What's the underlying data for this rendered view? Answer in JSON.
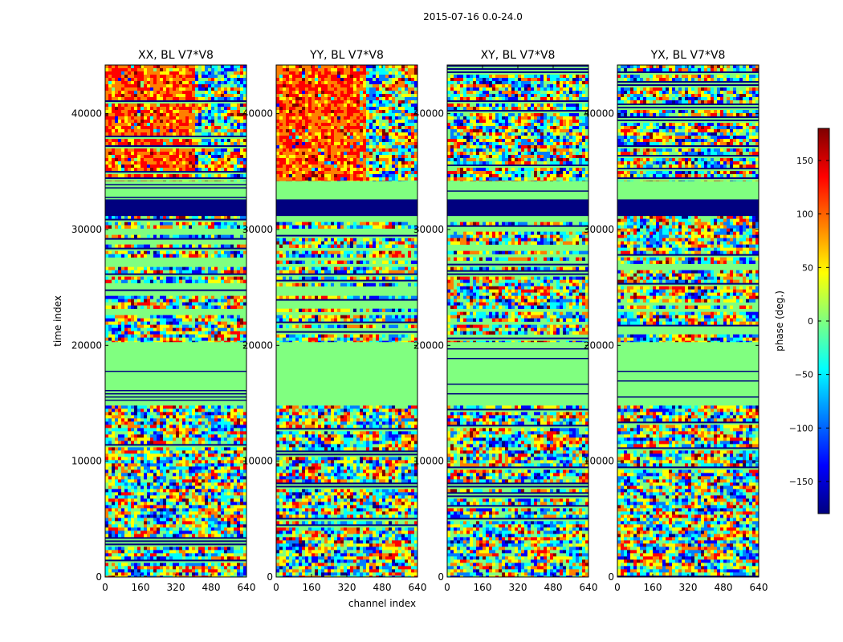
{
  "chart_data": {
    "type": "heatmap",
    "suptitle": "2015-07-16 0.0-24.0",
    "xlabel": "channel index",
    "ylabel": "time index",
    "xlim": [
      0,
      640
    ],
    "ylim": [
      0,
      44200
    ],
    "xticks": [
      0,
      160,
      320,
      480,
      640
    ],
    "yticks": [
      0,
      10000,
      20000,
      30000,
      40000
    ],
    "panels": [
      {
        "title": "XX, BL V7*V8",
        "band_dir": 1
      },
      {
        "title": "YY, BL V7*V8",
        "band_dir": -1
      },
      {
        "title": "XY, BL V7*V8",
        "band_dir": 1
      },
      {
        "title": "YX, BL V7*V8",
        "band_dir": -1
      }
    ],
    "colorbar": {
      "label": "phase (deg.)",
      "vmin": -180,
      "vmax": 180,
      "ticks": [
        150,
        100,
        50,
        0,
        -50,
        -100,
        -150
      ],
      "tick_labels": [
        "150",
        "100",
        "50",
        "0",
        "−50",
        "−100",
        "−150"
      ],
      "colormap": [
        "#00007f",
        "#0000ff",
        "#007fff",
        "#00ffff",
        "#7fff7f",
        "#ffff00",
        "#ff7f00",
        "#ff0000",
        "#7f0000"
      ]
    },
    "flagged_value": "#80ff80",
    "regions": [
      {
        "t0": 0,
        "t1": 14800,
        "kind": "noisy"
      },
      {
        "t0": 14800,
        "t1": 20300,
        "kind": "flagged"
      },
      {
        "t0": 20300,
        "t1": 31200,
        "kind": "mixed"
      },
      {
        "t0": 31200,
        "t1": 32600,
        "kind": "blank"
      },
      {
        "t0": 32600,
        "t1": 34200,
        "kind": "flagged"
      },
      {
        "t0": 34200,
        "t1": 44200,
        "kind": "warm"
      }
    ]
  }
}
